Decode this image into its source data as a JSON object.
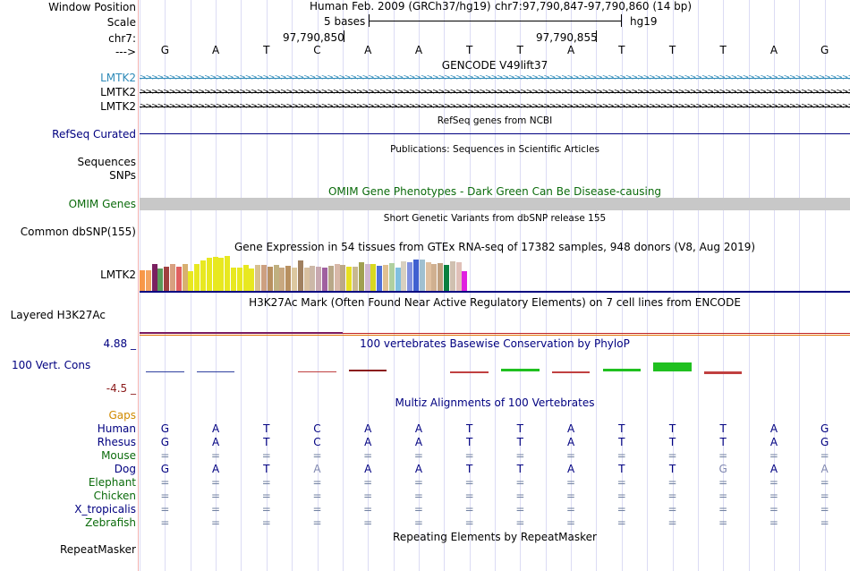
{
  "header": {
    "window_position_label": "Window Position",
    "scale_label": "Scale",
    "chrom_label": "chr7:",
    "strand_label": "--->",
    "assembly_text": "Human Feb. 2009 (GRCh37/hg19)",
    "position_text": "chr7:97,790,847-97,790,860 (14 bp)",
    "scale_text": "5 bases",
    "db_text": "hg19",
    "coord_1": "97,790,850",
    "coord_2": "97,790,855"
  },
  "sequence": [
    "G",
    "A",
    "T",
    "C",
    "A",
    "A",
    "T",
    "T",
    "A",
    "T",
    "T",
    "T",
    "A",
    "G"
  ],
  "tracks": {
    "gencode": {
      "title": "GENCODE V49lift37",
      "items": [
        "LMTK2",
        "LMTK2",
        "LMTK2"
      ],
      "colors": [
        "#2e8ab8",
        "#000000",
        "#000000"
      ]
    },
    "refseq": {
      "title": "RefSeq genes from NCBI",
      "label": "RefSeq Curated",
      "color": "#000080"
    },
    "publications": {
      "title": "Publications: Sequences in Scientific Articles",
      "labels": [
        "Sequences",
        "SNPs"
      ]
    },
    "omim": {
      "title": "OMIM Gene Phenotypes - Dark Green Can Be Disease-causing",
      "label": "OMIM Genes",
      "color": "#0b6b0b"
    },
    "dbsnp": {
      "title": "Short Genetic Variants from dbSNP release 155",
      "label": "Common dbSNP(155)"
    },
    "gtex": {
      "title": "Gene Expression in 54 tissues from GTEx RNA-seq of 17382 samples, 948 donors (V8, Aug 2019)",
      "label": "LMTK2",
      "values": [
        23,
        23,
        30,
        25,
        27,
        30,
        27,
        30,
        22,
        30,
        34,
        37,
        38,
        37,
        39,
        26,
        26,
        29,
        25,
        29,
        29,
        27,
        29,
        26,
        28,
        26,
        34,
        26,
        28,
        27,
        26,
        28,
        30,
        29,
        27,
        27,
        32,
        30,
        30,
        28,
        29,
        31,
        26,
        33,
        32,
        35,
        35,
        32,
        30,
        31,
        29,
        33,
        32,
        22
      ],
      "colors": [
        "#f89848",
        "#f4a460",
        "#7a2060",
        "#5a9a5a",
        "#a04040",
        "#d8a080",
        "#e06060",
        "#d8b070",
        "#e8e820",
        "#e8e820",
        "#e8e820",
        "#e8e820",
        "#e8e820",
        "#e8e820",
        "#e8e820",
        "#e8e820",
        "#e8e820",
        "#e8e820",
        "#e8e820",
        "#d8c090",
        "#cda080",
        "#b89060",
        "#c0b080",
        "#c8a880",
        "#b89060",
        "#dcc8a0",
        "#a08060",
        "#d8c0a0",
        "#ccb8a8",
        "#c8a8b0",
        "#a060a0",
        "#b8a888",
        "#d8b8a8",
        "#bca888",
        "#e8e020",
        "#c8b890",
        "#a0a050",
        "#d0b8d0",
        "#d8d820",
        "#5070d8",
        "#e0c090",
        "#b0d0a0",
        "#80c0e0",
        "#d8d0c0",
        "#8090e0",
        "#4060d0",
        "#a0c0d0",
        "#e0c0a0",
        "#d0b090",
        "#c0a080",
        "#0a8040",
        "#d0c0b0",
        "#e0c0b8",
        "#e020e0"
      ]
    },
    "h3k27ac": {
      "title": "H3K27Ac Mark (Often Found Near Active Regulatory Elements) on 7 cell lines from ENCODE",
      "label": "Layered H3K27Ac"
    },
    "phylop": {
      "title": "100 vertebrates Basewise Conservation by PhyloP",
      "label": "100 Vert. Cons",
      "ymax": "4.88 _",
      "ymin": "-4.5 _",
      "values": [
        -0.1,
        -0.1,
        0,
        -0.25,
        0.3,
        0,
        -0.3,
        0.6,
        -0.3,
        0.5,
        1.9,
        -0.6,
        0,
        0
      ]
    },
    "multiz": {
      "title": "Multiz Alignments of 100 Vertebrates",
      "gaps_label": "Gaps",
      "species": [
        {
          "name": "Human",
          "color": "#000080",
          "bases": [
            "G",
            "A",
            "T",
            "C",
            "A",
            "A",
            "T",
            "T",
            "A",
            "T",
            "T",
            "T",
            "A",
            "G"
          ]
        },
        {
          "name": "Rhesus",
          "color": "#000080",
          "bases": [
            "G",
            "A",
            "T",
            "C",
            "A",
            "A",
            "T",
            "T",
            "A",
            "T",
            "T",
            "T",
            "A",
            "G"
          ]
        },
        {
          "name": "Mouse",
          "color": "#0b6b0b",
          "bases": [
            "=",
            "=",
            "=",
            "=",
            "=",
            "=",
            "=",
            "=",
            "=",
            "=",
            "=",
            "=",
            "=",
            "="
          ]
        },
        {
          "name": "Dog",
          "color": "#000080",
          "bases": [
            "G",
            "A",
            "T",
            "A",
            "A",
            "A",
            "T",
            "T",
            "A",
            "T",
            "T",
            "G",
            "A",
            "A"
          ]
        },
        {
          "name": "Elephant",
          "color": "#0b6b0b",
          "bases": [
            "=",
            "=",
            "=",
            "=",
            "=",
            "=",
            "=",
            "=",
            "=",
            "=",
            "=",
            "=",
            "=",
            "="
          ]
        },
        {
          "name": "Chicken",
          "color": "#0b6b0b",
          "bases": [
            "=",
            "=",
            "=",
            "=",
            "=",
            "=",
            "=",
            "=",
            "=",
            "=",
            "=",
            "=",
            "=",
            "="
          ]
        },
        {
          "name": "X_tropicalis",
          "color": "#000080",
          "bases": [
            "=",
            "=",
            "=",
            "=",
            "=",
            "=",
            "=",
            "=",
            "=",
            "=",
            "=",
            "=",
            "=",
            "="
          ]
        },
        {
          "name": "Zebrafish",
          "color": "#0b6b0b",
          "bases": [
            "=",
            "=",
            "=",
            "=",
            "=",
            "=",
            "=",
            "=",
            "=",
            "=",
            "=",
            "=",
            "=",
            "="
          ]
        }
      ],
      "dim_positions": {
        "Dog": [
          3,
          11,
          13
        ]
      }
    },
    "repeatmasker": {
      "title": "Repeating Elements by RepeatMasker",
      "label": "RepeatMasker"
    }
  },
  "colors": {
    "label_blue": "#000080",
    "gaps_orange": "#d08a00",
    "phylop_max": "#000080",
    "phylop_min": "#8b1a1a",
    "gene_blue": "#2e8ab8"
  }
}
